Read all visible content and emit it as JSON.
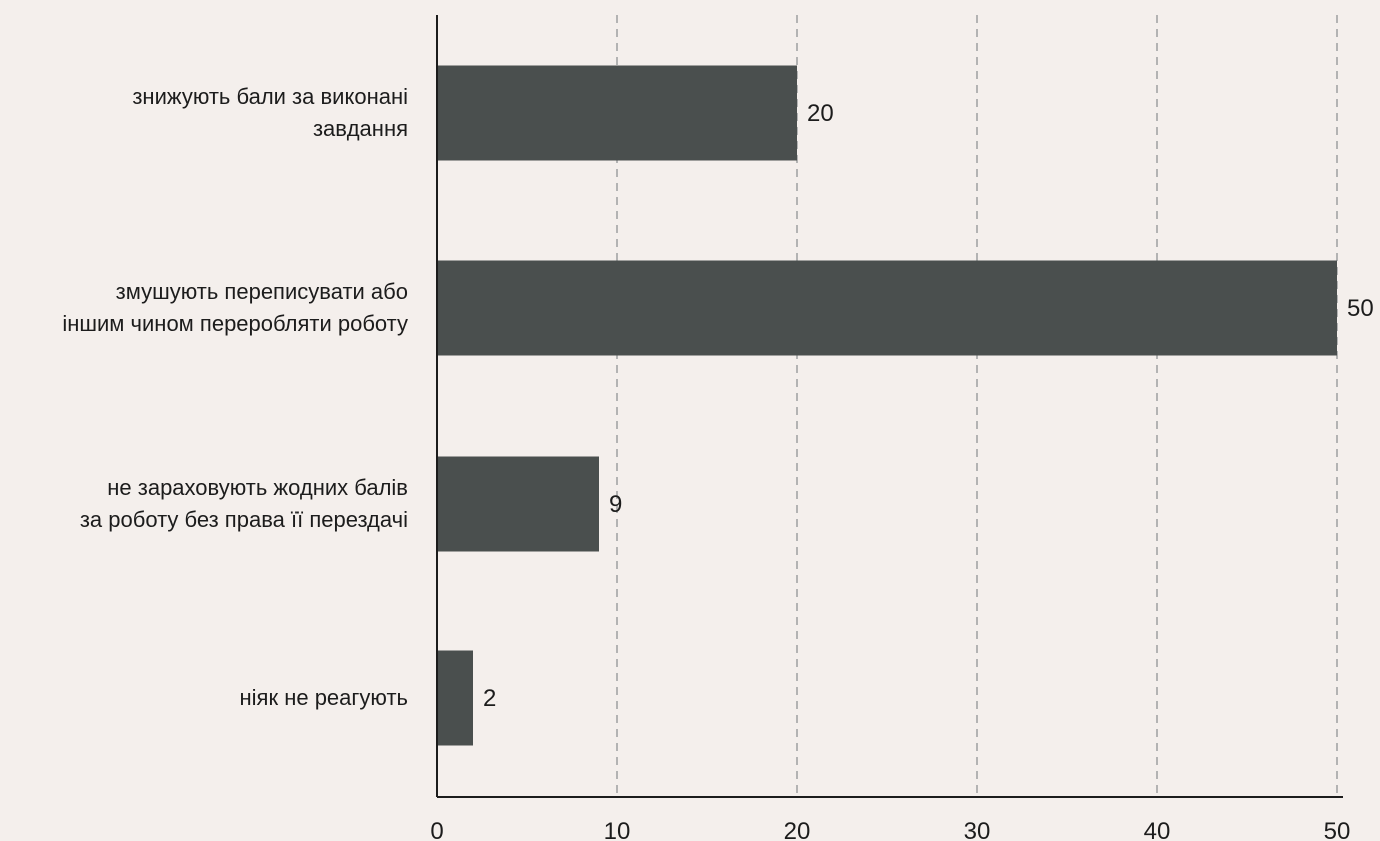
{
  "chart_data": {
    "type": "bar",
    "orientation": "horizontal",
    "categories": [
      [
        "знижують бали за виконані",
        "завдання"
      ],
      [
        "змушують переписувати або",
        "іншим чином переробляти роботу"
      ],
      [
        "не зараховують жодних балів",
        "за роботу без права її перездачі"
      ],
      [
        "ніяк не реагують"
      ]
    ],
    "values": [
      20,
      50,
      9,
      2
    ],
    "value_labels": [
      "20",
      "50",
      "9",
      "2"
    ],
    "x_ticks": [
      0,
      10,
      20,
      30,
      40,
      50
    ],
    "xlim": [
      0,
      50
    ],
    "title": "",
    "xlabel": "",
    "ylabel": "",
    "grid": "vertical dashed",
    "legend": "none",
    "colors": {
      "bar": "#4a4f4e",
      "background": "#f4efec",
      "axis": "#1c1c1c",
      "grid": "#b3b3b3",
      "text": "#1c1c1c"
    }
  }
}
